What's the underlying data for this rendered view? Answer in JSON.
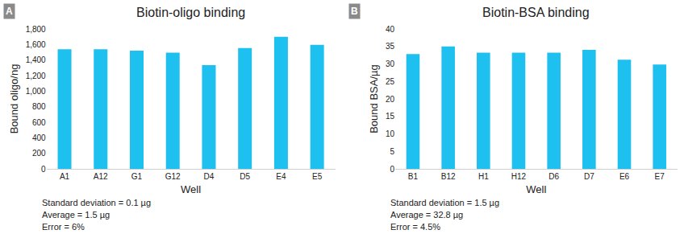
{
  "chart_data": [
    {
      "type": "bar",
      "panel": "A",
      "title": "Biotin-oligo binding",
      "x_label": "Well",
      "y_label": "Bound oligo/ng",
      "categories": [
        "A1",
        "A12",
        "G1",
        "G12",
        "D4",
        "D5",
        "E4",
        "E5"
      ],
      "values": [
        1540,
        1540,
        1520,
        1495,
        1335,
        1555,
        1700,
        1595
      ],
      "color": "#1ec0f0",
      "ylim": [
        0,
        1800
      ],
      "yticks": [
        0,
        200,
        400,
        600,
        800,
        {
          "value": 1000,
          "label": "1,000"
        },
        {
          "value": 1200,
          "label": "1,200"
        },
        {
          "value": 1400,
          "label": "1,400"
        },
        {
          "value": 1600,
          "label": "1,600"
        },
        {
          "value": 1800,
          "label": "1,800"
        }
      ],
      "grid": false,
      "annotations": [
        "Standard deviation = 0.1 µg",
        "Average = 1.5 µg",
        "Error = 6%"
      ]
    },
    {
      "type": "bar",
      "panel": "B",
      "title": "Biotin-BSA binding",
      "x_label": "Well",
      "y_label": "Bound BSA/µg",
      "categories": [
        "B1",
        "B12",
        "H1",
        "H12",
        "D6",
        "D7",
        "E6",
        "E7"
      ],
      "values": [
        32.8,
        35,
        33.2,
        33.2,
        33.2,
        34,
        31.2,
        29.8
      ],
      "color": "#1ec0f0",
      "ylim": [
        0,
        40
      ],
      "yticks": [
        0,
        5,
        10,
        15,
        20,
        25,
        30,
        35,
        40
      ],
      "grid": false,
      "annotations": [
        "Standard deviation = 1.5 µg",
        "Average = 32.8 µg",
        "Error = 4.5%"
      ]
    }
  ]
}
